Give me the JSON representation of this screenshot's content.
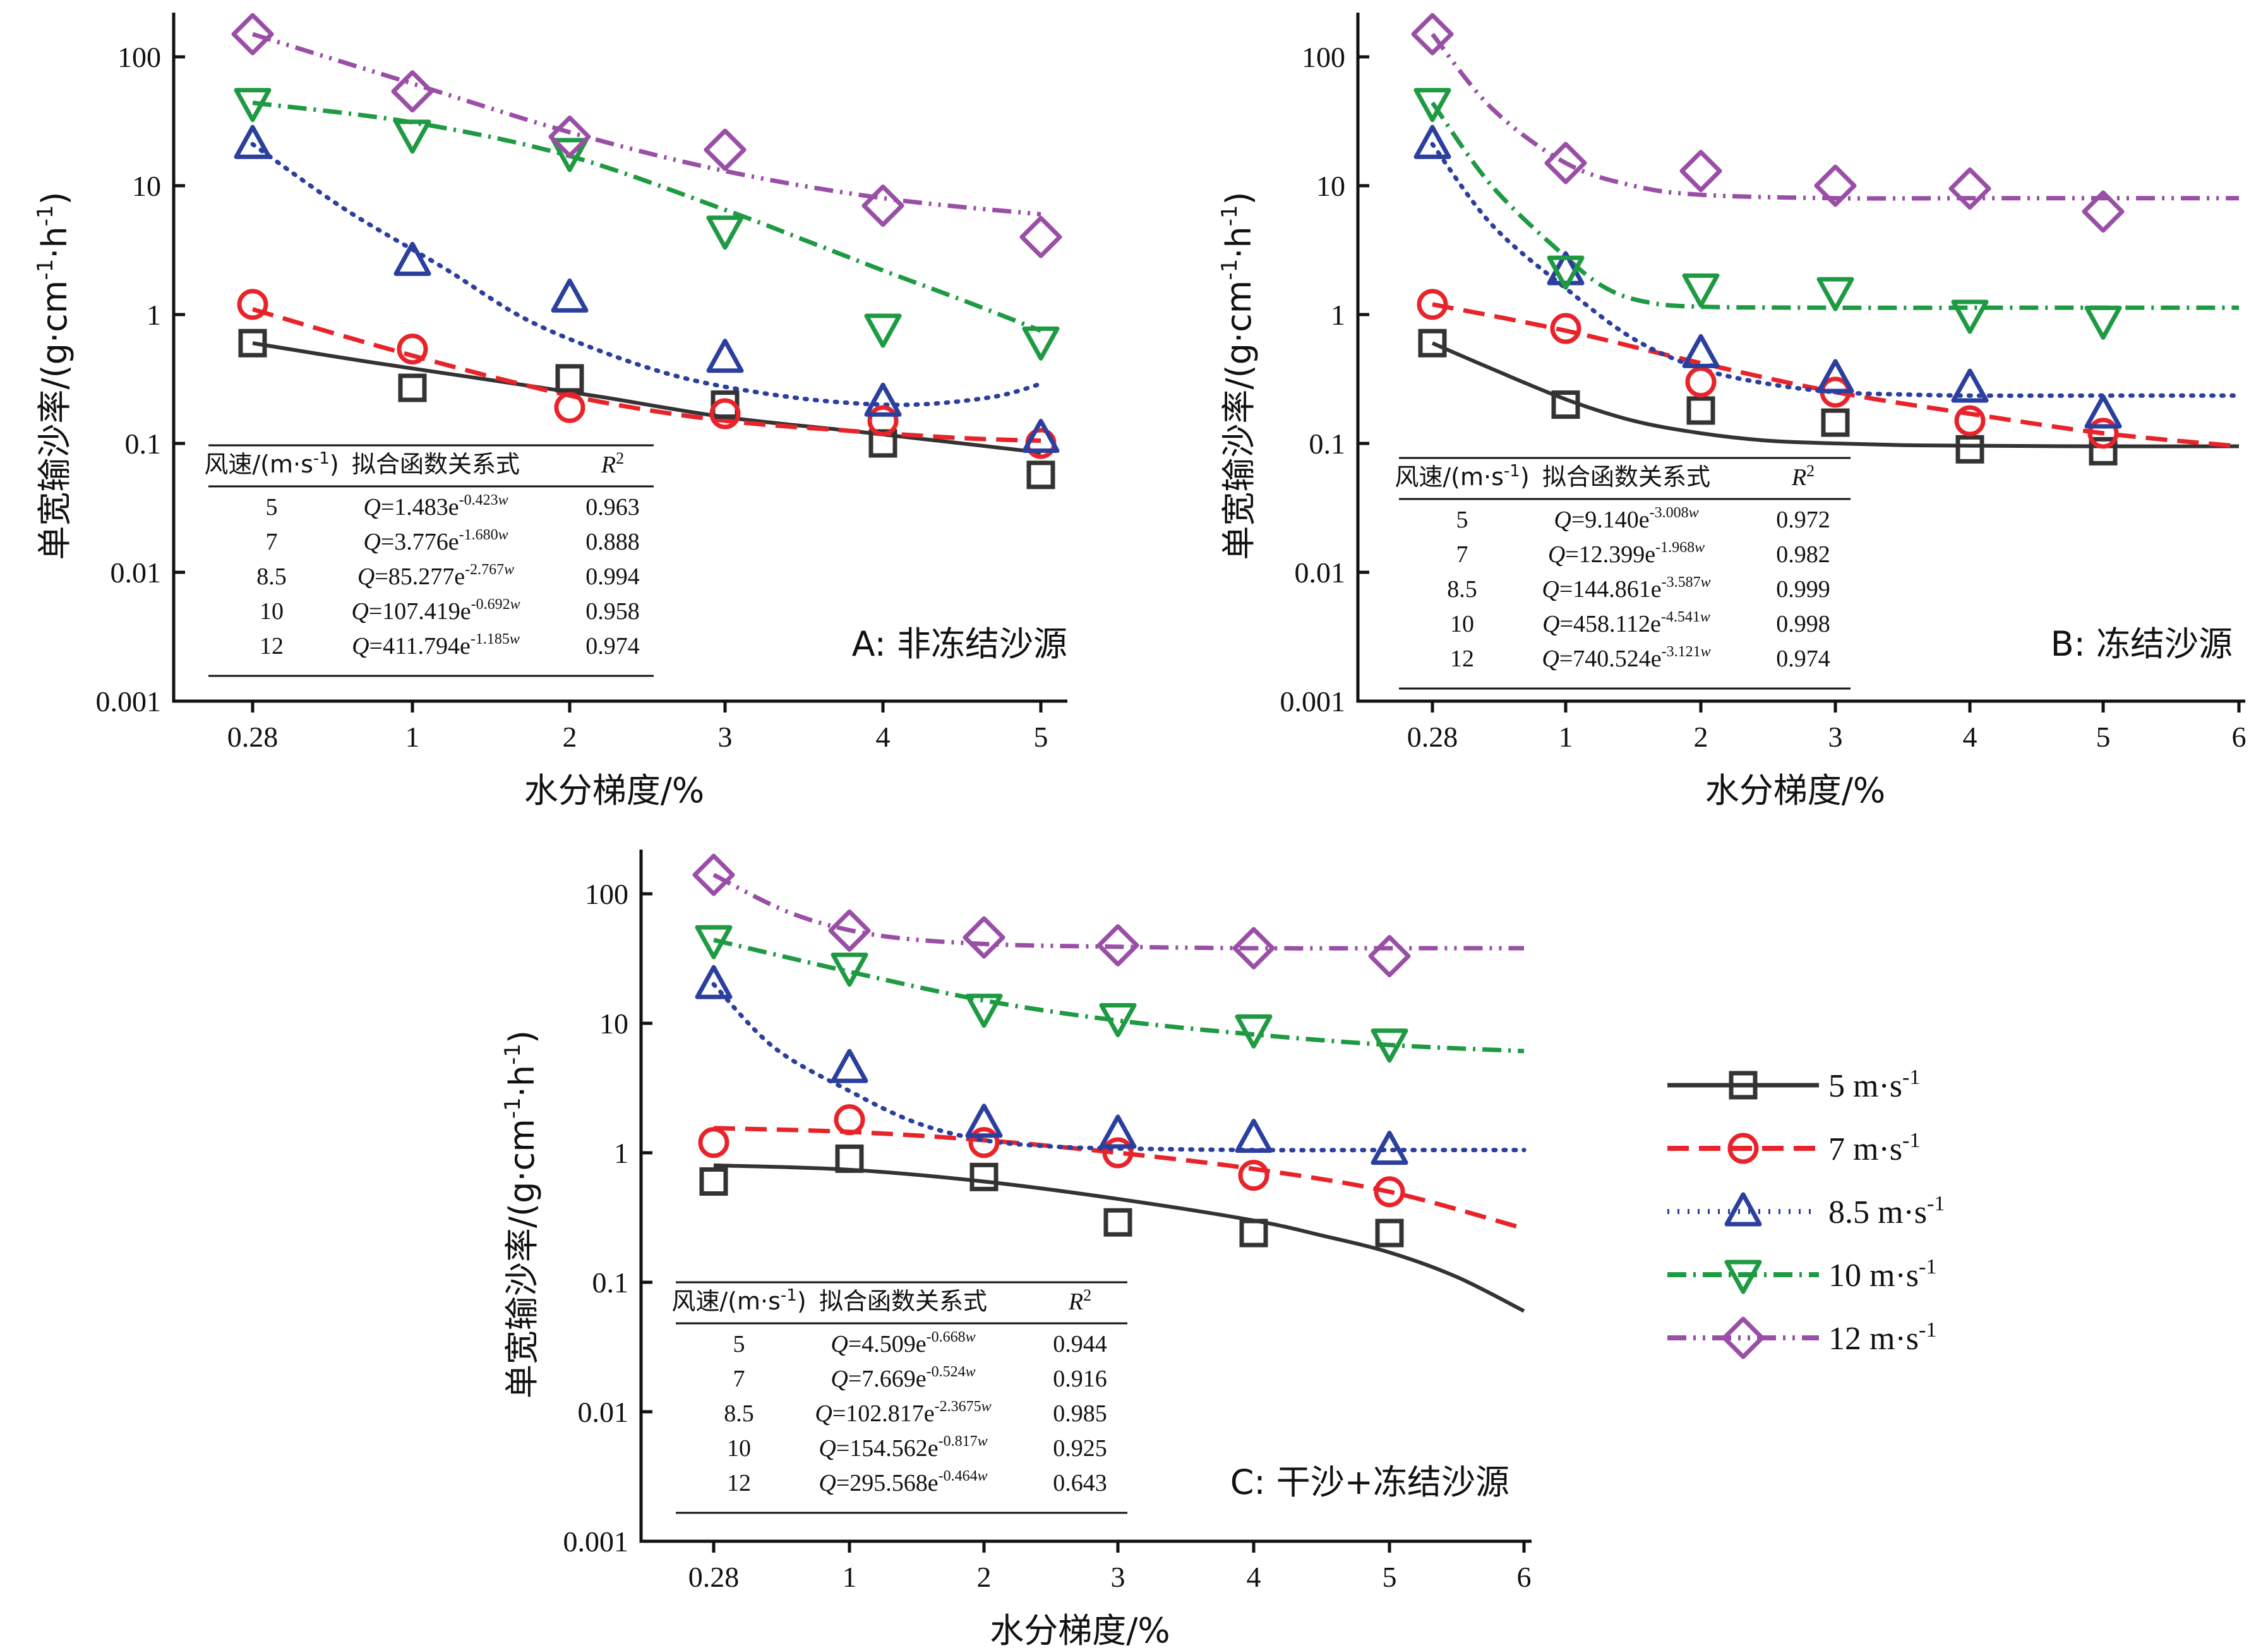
{
  "colors": {
    "5": "#333333",
    "7": "#e8232a",
    "8.5": "#2b3f9e",
    "10": "#1e9a42",
    "12": "#9a4fa6"
  },
  "legend": [
    {
      "key": "5",
      "label": "5 m·s",
      "sup": "-1",
      "marker": "square"
    },
    {
      "key": "7",
      "label": "7 m·s",
      "sup": "-1",
      "marker": "circle"
    },
    {
      "key": "8.5",
      "label": "8.5 m·s",
      "sup": "-1",
      "marker": "triangle-up"
    },
    {
      "key": "10",
      "label": "10 m·s",
      "sup": "-1",
      "marker": "triangle-down"
    },
    {
      "key": "12",
      "label": "12 m·s",
      "sup": "-1",
      "marker": "diamond"
    }
  ],
  "chart_data": [
    {
      "id": "A",
      "type": "scatter",
      "panel_label": "A: 非冻结沙源",
      "xlabel": "水分梯度/%",
      "ylabel": "单宽输沙率/(g·cm-1·h-1)",
      "yscale": "log",
      "ylim": [
        0.001,
        200
      ],
      "xlim": [
        0,
        5.1
      ],
      "xticks": [
        0.28,
        1,
        2,
        3,
        4,
        5
      ],
      "xticklabels": [
        "0.28",
        "1",
        "2",
        "3",
        "4",
        "5"
      ],
      "yticks": [
        0.001,
        0.01,
        0.1,
        1,
        10,
        100
      ],
      "yticklabels": [
        "0.001",
        "0.01",
        "0.1",
        "1",
        "10",
        "100"
      ],
      "series": [
        {
          "key": "5",
          "x": [
            0.28,
            1,
            2,
            3,
            4,
            5
          ],
          "y": [
            0.6,
            0.27,
            0.32,
            0.2,
            0.1,
            0.057
          ]
        },
        {
          "key": "7",
          "x": [
            0.28,
            1,
            2,
            3,
            4,
            5
          ],
          "y": [
            1.2,
            0.54,
            0.19,
            0.17,
            0.15,
            0.1
          ]
        },
        {
          "key": "8.5",
          "x": [
            0.28,
            1,
            2,
            3,
            4,
            5
          ],
          "y": [
            21,
            2.6,
            1.35,
            0.46,
            0.21,
            0.11
          ]
        },
        {
          "key": "10",
          "x": [
            0.28,
            1,
            2,
            3,
            4,
            5
          ],
          "y": [
            44,
            25,
            18,
            4.5,
            0.78,
            0.62
          ]
        },
        {
          "key": "12",
          "x": [
            0.28,
            1,
            2,
            3,
            4,
            5
          ],
          "y": [
            150,
            54,
            24,
            19,
            7,
            4
          ]
        }
      ],
      "fits": [
        {
          "key": "5",
          "x": [
            0.28,
            0.8,
            1.5,
            2.2,
            3,
            3.8,
            4.5,
            5
          ],
          "y": [
            0.6,
            0.43,
            0.31,
            0.23,
            0.16,
            0.125,
            0.1,
            0.085
          ]
        },
        {
          "key": "7",
          "x": [
            0.28,
            0.8,
            1.5,
            2.2,
            3,
            3.8,
            4.5,
            5
          ],
          "y": [
            1.1,
            0.6,
            0.33,
            0.21,
            0.15,
            0.125,
            0.11,
            0.105
          ]
        },
        {
          "key": "8.5",
          "x": [
            0.28,
            0.7,
            1.2,
            1.7,
            2.2,
            2.7,
            3.2,
            3.7,
            4.2,
            4.7,
            5
          ],
          "y": [
            21,
            6.5,
            2.3,
            0.95,
            0.52,
            0.33,
            0.25,
            0.21,
            0.2,
            0.23,
            0.29
          ]
        },
        {
          "key": "10",
          "x": [
            0.28,
            1,
            2,
            3,
            3.5,
            4,
            4.5,
            5
          ],
          "y": [
            44,
            31,
            17,
            6.5,
            3.8,
            2.2,
            1.3,
            0.75
          ]
        },
        {
          "key": "12",
          "x": [
            0.28,
            1,
            2,
            3,
            4,
            5
          ],
          "y": [
            150,
            62,
            26,
            13,
            8,
            6
          ]
        }
      ],
      "table": {
        "headers": [
          "风速/(m·s-1)",
          "拟合函数关系式",
          "R2"
        ],
        "rows": [
          {
            "v": "5",
            "coef": "1.483",
            "exp": "-0.423w",
            "r2": "0.963"
          },
          {
            "v": "7",
            "coef": "3.776",
            "exp": "-1.680w",
            "r2": "0.888"
          },
          {
            "v": "8.5",
            "coef": "85.277",
            "exp": "-2.767w",
            "r2": "0.994"
          },
          {
            "v": "10",
            "coef": "107.419",
            "exp": "-0.692w",
            "r2": "0.958"
          },
          {
            "v": "12",
            "coef": "411.794",
            "exp": "-1.185w",
            "r2": "0.974"
          }
        ]
      }
    },
    {
      "id": "B",
      "type": "scatter",
      "panel_label": "B: 冻结沙源",
      "xlabel": "水分梯度/%",
      "ylabel": "单宽输沙率/(g·cm-1·h-1)",
      "yscale": "log",
      "ylim": [
        0.001,
        200
      ],
      "xlim": [
        0,
        6
      ],
      "xticks": [
        0.28,
        1,
        2,
        3,
        4,
        5,
        6
      ],
      "xticklabels": [
        "0.28",
        "1",
        "2",
        "3",
        "4",
        "5",
        "6"
      ],
      "yticks": [
        0.001,
        0.01,
        0.1,
        1,
        10,
        100
      ],
      "yticklabels": [
        "0.001",
        "0.01",
        "0.1",
        "1",
        "10",
        "100"
      ],
      "series": [
        {
          "key": "5",
          "x": [
            0.28,
            1,
            2,
            3,
            4,
            5
          ],
          "y": [
            0.6,
            0.2,
            0.18,
            0.145,
            0.09,
            0.087
          ]
        },
        {
          "key": "7",
          "x": [
            0.28,
            1,
            2,
            3,
            4,
            5
          ],
          "y": [
            1.2,
            0.78,
            0.3,
            0.25,
            0.15,
            0.12
          ]
        },
        {
          "key": "8.5",
          "x": [
            0.28,
            1,
            2,
            3,
            4,
            5
          ],
          "y": [
            21,
            2.2,
            0.5,
            0.32,
            0.27,
            0.17
          ]
        },
        {
          "key": "10",
          "x": [
            0.28,
            1,
            2,
            3,
            4,
            5
          ],
          "y": [
            44,
            2.2,
            1.6,
            1.5,
            1.0,
            0.9
          ]
        },
        {
          "key": "12",
          "x": [
            0.28,
            1,
            2,
            3,
            4,
            5
          ],
          "y": [
            150,
            15,
            13,
            10,
            9.5,
            6.3
          ]
        }
      ],
      "fits": [
        {
          "key": "5",
          "x": [
            0.28,
            0.6,
            1,
            1.5,
            2,
            2.5,
            3,
            3.5,
            4,
            5,
            6
          ],
          "y": [
            0.6,
            0.38,
            0.22,
            0.15,
            0.12,
            0.105,
            0.1,
            0.097,
            0.096,
            0.095,
            0.095
          ]
        },
        {
          "key": "7",
          "x": [
            0.28,
            1,
            2,
            3,
            4,
            5,
            6
          ],
          "y": [
            1.2,
            0.75,
            0.42,
            0.25,
            0.17,
            0.12,
            0.095
          ]
        },
        {
          "key": "8.5",
          "x": [
            0.28,
            0.6,
            1,
            1.5,
            2,
            2.5,
            3,
            3.5,
            4,
            5,
            6
          ],
          "y": [
            21,
            5,
            1.6,
            0.65,
            0.38,
            0.29,
            0.25,
            0.24,
            0.235,
            0.235,
            0.235
          ]
        },
        {
          "key": "10",
          "x": [
            0.28,
            0.6,
            1,
            1.3,
            1.6,
            2,
            3,
            4,
            5,
            6
          ],
          "y": [
            44,
            10,
            2.8,
            1.6,
            1.25,
            1.15,
            1.13,
            1.13,
            1.13,
            1.13
          ]
        },
        {
          "key": "12",
          "x": [
            0.28,
            0.6,
            1,
            1.5,
            2,
            3,
            4,
            5,
            6
          ],
          "y": [
            150,
            40,
            15,
            10,
            8.5,
            8.0,
            8.0,
            8.0,
            8.0
          ]
        }
      ],
      "table": {
        "headers": [
          "风速/(m·s-1)",
          "拟合函数关系式",
          "R2"
        ],
        "rows": [
          {
            "v": "5",
            "coef": "9.140",
            "exp": "-3.008w",
            "r2": "0.972"
          },
          {
            "v": "7",
            "coef": "12.399",
            "exp": "-1.968w",
            "r2": "0.982"
          },
          {
            "v": "8.5",
            "coef": "144.861",
            "exp": "-3.587w",
            "r2": "0.999"
          },
          {
            "v": "10",
            "coef": "458.112",
            "exp": "-4.541w",
            "r2": "0.998"
          },
          {
            "v": "12",
            "coef": "740.524",
            "exp": "-3.121w",
            "r2": "0.974"
          }
        ]
      }
    },
    {
      "id": "C",
      "type": "scatter",
      "panel_label": "C: 干沙+冻结沙源",
      "xlabel": "水分梯度/%",
      "ylabel": "单宽输沙率/(g·cm-1·h-1)",
      "yscale": "log",
      "ylim": [
        0.001,
        200
      ],
      "xlim": [
        0,
        6
      ],
      "xticks": [
        0.28,
        1,
        2,
        3,
        4,
        5,
        6
      ],
      "xticklabels": [
        "0.28",
        "1",
        "2",
        "3",
        "4",
        "5",
        "6"
      ],
      "yticks": [
        0.001,
        0.01,
        0.1,
        1,
        10,
        100
      ],
      "yticklabels": [
        "0.001",
        "0.01",
        "0.1",
        "1",
        "10",
        "100"
      ],
      "series": [
        {
          "key": "5",
          "x": [
            0.28,
            1,
            2,
            3,
            4,
            5
          ],
          "y": [
            0.6,
            0.9,
            0.65,
            0.29,
            0.24,
            0.24
          ]
        },
        {
          "key": "7",
          "x": [
            0.28,
            1,
            2,
            3,
            4,
            5
          ],
          "y": [
            1.2,
            1.8,
            1.2,
            1.0,
            0.67,
            0.5
          ]
        },
        {
          "key": "8.5",
          "x": [
            0.28,
            1,
            2,
            3,
            4,
            5
          ],
          "y": [
            20,
            4.5,
            1.7,
            1.4,
            1.3,
            1.05
          ]
        },
        {
          "key": "10",
          "x": [
            0.28,
            1,
            2,
            3,
            4,
            5
          ],
          "y": [
            44,
            27,
            13,
            11,
            9,
            7
          ]
        },
        {
          "key": "12",
          "x": [
            0.28,
            1,
            2,
            3,
            4,
            5
          ],
          "y": [
            140,
            52,
            46,
            40,
            38,
            33
          ]
        }
      ],
      "fits": [
        {
          "key": "5",
          "x": [
            0.28,
            1,
            2,
            3,
            4,
            4.5,
            5,
            5.5,
            6
          ],
          "y": [
            0.8,
            0.74,
            0.6,
            0.44,
            0.3,
            0.23,
            0.17,
            0.11,
            0.06
          ]
        },
        {
          "key": "7",
          "x": [
            0.28,
            1,
            2,
            3,
            4,
            5,
            6
          ],
          "y": [
            1.55,
            1.45,
            1.25,
            1.0,
            0.75,
            0.5,
            0.26
          ]
        },
        {
          "key": "8.5",
          "x": [
            0.28,
            0.6,
            1,
            1.5,
            2,
            2.5,
            3,
            4,
            5,
            6
          ],
          "y": [
            20,
            6.5,
            3.0,
            1.7,
            1.25,
            1.12,
            1.08,
            1.05,
            1.05,
            1.05
          ]
        },
        {
          "key": "10",
          "x": [
            0.28,
            1,
            2,
            3,
            4,
            5,
            6
          ],
          "y": [
            44,
            25,
            15,
            10.5,
            8.2,
            6.8,
            6.1
          ]
        },
        {
          "key": "12",
          "x": [
            0.28,
            0.7,
            1.2,
            2,
            3,
            4,
            5,
            6
          ],
          "y": [
            140,
            70,
            48,
            41,
            39,
            38,
            38,
            38
          ]
        }
      ],
      "table": {
        "headers": [
          "风速/(m·s-1)",
          "拟合函数关系式",
          "R2"
        ],
        "rows": [
          {
            "v": "5",
            "coef": "4.509",
            "exp": "-0.668w",
            "r2": "0.944"
          },
          {
            "v": "7",
            "coef": "7.669",
            "exp": "-0.524w",
            "r2": "0.916"
          },
          {
            "v": "8.5",
            "coef": "102.817",
            "exp": "-2.3675w",
            "r2": "0.985"
          },
          {
            "v": "10",
            "coef": "154.562",
            "exp": "-0.817w",
            "r2": "0.925"
          },
          {
            "v": "12",
            "coef": "295.568",
            "exp": "-0.464w",
            "r2": "0.643"
          }
        ]
      }
    }
  ]
}
